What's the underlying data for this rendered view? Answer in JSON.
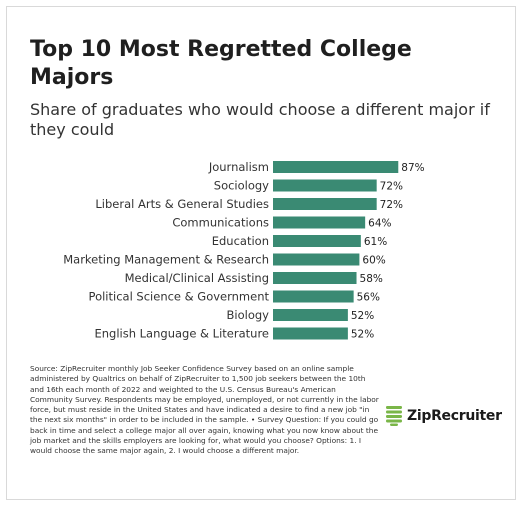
{
  "title": "Top 10 Most Regretted College Majors",
  "subtitle": "Share of graduates who would choose a different major if they could",
  "source": "Source: ZipRecruiter monthly Job Seeker Confidence Survey based on an online sample administered by Qualtrics on behalf of ZipRecruiter to 1,500 job seekers between the 10th and 16th each month of 2022 and weighted to the U.S. Census Bureau's American Community Survey. Respondents may be employed, unemployed, or not currently in the labor force, but must reside in the United States and have indicated a desire to find a new job \"in the next six months\" in order to be included in the sample. • Survey Question: If you could go back in time and select a college major all over again, knowing what you now know about the job market and the skills employers are looking for, what would you choose? Options: 1. I would choose the same major again, 2. I would choose a different major.",
  "logo": {
    "text": "ZipRecruiter",
    "icon": "ziprecruiter-logo-icon",
    "color": "#7ab648"
  },
  "chart_data": {
    "type": "bar",
    "orientation": "horizontal",
    "categories": [
      "Journalism",
      "Sociology",
      "Liberal Arts & General Studies",
      "Communications",
      "Education",
      "Marketing Management & Research",
      "Medical/Clinical Assisting",
      "Political Science & Government",
      "Biology",
      "English Language & Literature"
    ],
    "values": [
      87,
      72,
      72,
      64,
      61,
      60,
      58,
      56,
      52,
      52
    ],
    "data_labels": [
      "87%",
      "72%",
      "72%",
      "64%",
      "61%",
      "60%",
      "58%",
      "56%",
      "52%",
      "52%"
    ],
    "unit": "%",
    "xlim": [
      0,
      100
    ],
    "grid": false,
    "bar_color": "#3a8a73"
  }
}
